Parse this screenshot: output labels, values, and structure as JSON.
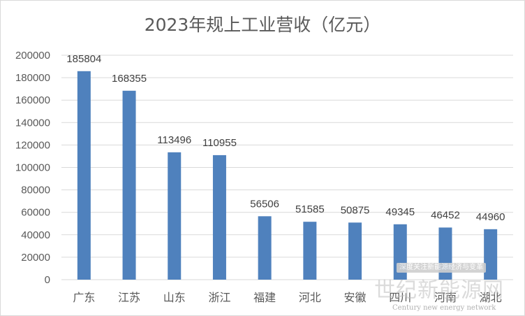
{
  "chart_data": {
    "type": "bar",
    "title": "2023年规上工业营收（亿元）",
    "categories": [
      "广东",
      "江苏",
      "山东",
      "浙江",
      "福建",
      "河北",
      "安徽",
      "四川",
      "河南",
      "湖北"
    ],
    "values": [
      185804,
      168355,
      113496,
      110955,
      56506,
      51585,
      50875,
      49345,
      46452,
      44960
    ],
    "data_labels": [
      "185804",
      "168355",
      "113496",
      "110955",
      "56506",
      "51585",
      "50875",
      "49345",
      "46452",
      "44960"
    ],
    "yticks": [
      "0",
      "20000",
      "40000",
      "60000",
      "80000",
      "100000",
      "120000",
      "140000",
      "160000",
      "180000",
      "200000"
    ],
    "ylim": [
      0,
      200000
    ],
    "xlabel": "",
    "ylabel": "",
    "grid": true,
    "bar_color": "#4f81bd"
  },
  "watermark": {
    "badge": "深度关注新能源经济与变革",
    "main": "世纪新能源网",
    "sub": "Century new energy network"
  }
}
